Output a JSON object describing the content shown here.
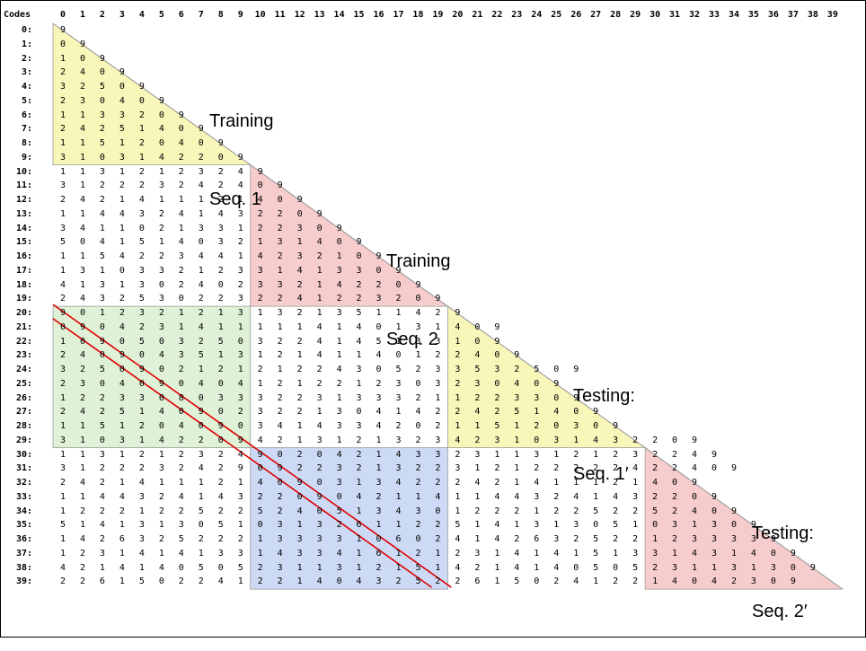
{
  "header": {
    "corner": "Codes"
  },
  "columns": [
    "0",
    "1",
    "2",
    "3",
    "4",
    "5",
    "6",
    "7",
    "8",
    "9",
    "10",
    "11",
    "12",
    "13",
    "14",
    "15",
    "16",
    "17",
    "18",
    "19",
    "20",
    "21",
    "22",
    "23",
    "24",
    "25",
    "26",
    "27",
    "28",
    "29",
    "30",
    "31",
    "32",
    "33",
    "34",
    "35",
    "36",
    "37",
    "38",
    "39"
  ],
  "row_labels": [
    "0:",
    "1:",
    "2:",
    "3:",
    "4:",
    "5:",
    "6:",
    "7:",
    "8:",
    "9:",
    "10:",
    "11:",
    "12:",
    "13:",
    "14:",
    "15:",
    "16:",
    "17:",
    "18:",
    "19:",
    "20:",
    "21:",
    "22:",
    "23:",
    "24:",
    "25:",
    "26:",
    "27:",
    "28:",
    "29:",
    "30:",
    "31:",
    "32:",
    "33:",
    "34:",
    "35:",
    "36:",
    "37:",
    "38:",
    "39:"
  ],
  "rows": [
    "9",
    "09",
    "109",
    "2409",
    "32509",
    "230409",
    "1133209",
    "24251409",
    "115120409",
    "3103142209",
    "11312123249",
    "312223242409",
    "2421411121409",
    "11443241432209",
    "341102133122309",
    "5041514032131409",
    "11542234414232109",
    "131033212331413309",
    "4131302402332142209",
    "24325302232241223209",
    "901232121313213511429",
    "0904231411111414013140 9",
    "10905032503224145133109",
    "240904351312141140122409",
    "3250902121212243052335325 09",
    "23040904041212212303230409",
    "122330803332231333211223309",
    "2425140902322130414224251409",
    "11512040903414334202115120309",
    "310314220942131213234231031432209",
    "1131212324902042143323113121232249",
    "31222324290922321322312122222422409",
    "242141112140903134222421411121409",
    "1144324143220904211411443241432209",
    "12221225225240513430122212252252409",
    "514131305103132611225141313051031309",
    "1426325222133331060241426325221233339",
    "12314141331433416121231414151331431409",
    "421414050523113121514214140505231131309",
    "2261502241221404325226150241221404230 9"
  ],
  "labels": {
    "training_seq_1": [
      "Training",
      "Seq. 1"
    ],
    "training_seq_2": [
      "Training",
      "Seq. 2"
    ],
    "testing_seq_1": [
      "Testing:",
      "Seq. 1′"
    ],
    "testing_seq_2": [
      "Testing:",
      "Seq. 2′"
    ]
  },
  "colors": {
    "yellow": "#f7f5b0",
    "pink": "#f6c6c8",
    "green": "#dcefd2",
    "blue": "#c6d6f4",
    "red_line": "#e00000",
    "triangle_edge": "#9a9a9a"
  }
}
